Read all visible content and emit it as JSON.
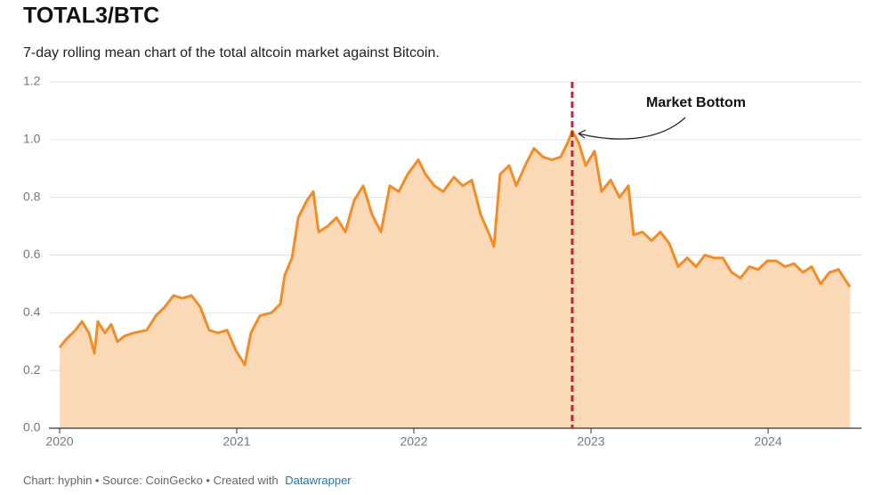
{
  "chart_data": {
    "type": "area",
    "title": "TOTAL3/BTC",
    "subtitle": "7-day rolling mean chart of the total altcoin market against Bitcoin.",
    "source": "Chart: hyphin • Source: CoinGecko • Created with",
    "credit": "Datawrapper",
    "x": [
      2020.0,
      2020.04,
      2020.09,
      2020.126,
      2020.166,
      2020.196,
      2020.216,
      2020.256,
      2020.291,
      2020.327,
      2020.367,
      2020.417,
      2020.492,
      2020.543,
      2020.593,
      2020.643,
      2020.693,
      2020.744,
      2020.794,
      2020.844,
      2020.894,
      2020.945,
      2020.995,
      2021.045,
      2021.08,
      2021.131,
      2021.196,
      2021.246,
      2021.271,
      2021.312,
      2021.347,
      2021.397,
      2021.432,
      2021.462,
      2021.513,
      2021.563,
      2021.613,
      2021.663,
      2021.714,
      2021.764,
      2021.814,
      2021.864,
      2021.915,
      2021.965,
      2022.025,
      2022.065,
      2022.116,
      2022.166,
      2022.226,
      2022.276,
      2022.327,
      2022.377,
      2022.427,
      2022.452,
      2022.487,
      2022.538,
      2022.578,
      2022.628,
      2022.678,
      2022.729,
      2022.779,
      2022.829,
      2022.869,
      2022.894,
      2022.93,
      2022.97,
      2023.02,
      2023.06,
      2023.111,
      2023.161,
      2023.211,
      2023.241,
      2023.291,
      2023.342,
      2023.392,
      2023.442,
      2023.492,
      2023.543,
      2023.593,
      2023.643,
      2023.693,
      2023.744,
      2023.794,
      2023.844,
      2023.894,
      2023.945,
      2023.995,
      2024.045,
      2024.095,
      2024.146,
      2024.196,
      2024.246,
      2024.296,
      2024.347,
      2024.397,
      2024.462
    ],
    "values": [
      0.28,
      0.31,
      0.34,
      0.37,
      0.33,
      0.26,
      0.37,
      0.33,
      0.36,
      0.3,
      0.32,
      0.33,
      0.34,
      0.39,
      0.42,
      0.46,
      0.45,
      0.46,
      0.42,
      0.34,
      0.33,
      0.34,
      0.27,
      0.22,
      0.33,
      0.39,
      0.4,
      0.43,
      0.53,
      0.59,
      0.73,
      0.79,
      0.82,
      0.68,
      0.7,
      0.73,
      0.68,
      0.79,
      0.84,
      0.74,
      0.68,
      0.84,
      0.82,
      0.88,
      0.93,
      0.88,
      0.84,
      0.82,
      0.87,
      0.84,
      0.86,
      0.74,
      0.67,
      0.63,
      0.88,
      0.91,
      0.84,
      0.91,
      0.97,
      0.94,
      0.93,
      0.94,
      0.99,
      1.03,
      0.99,
      0.91,
      0.96,
      0.82,
      0.86,
      0.8,
      0.84,
      0.67,
      0.68,
      0.65,
      0.68,
      0.64,
      0.56,
      0.59,
      0.56,
      0.6,
      0.59,
      0.59,
      0.54,
      0.52,
      0.56,
      0.55,
      0.58,
      0.58,
      0.56,
      0.57,
      0.54,
      0.56,
      0.5,
      0.54,
      0.55,
      0.49
    ],
    "line_color": "#f28c28",
    "fill_color": "#fcd9b6",
    "xlim": [
      2020,
      2024.462
    ],
    "xticks": [
      2020,
      2021,
      2022,
      2023,
      2024
    ],
    "ylim": [
      0,
      1.2
    ],
    "yticks": [
      {
        "value": 0,
        "label": "0.0"
      },
      0.2,
      0.4,
      0.6,
      0.8,
      {
        "value": 1,
        "label": "1.0"
      },
      1.2
    ],
    "grid": true,
    "annotations": [
      {
        "text": "Market Bottom",
        "x": 2022.894,
        "color": "#c0272d"
      }
    ]
  }
}
